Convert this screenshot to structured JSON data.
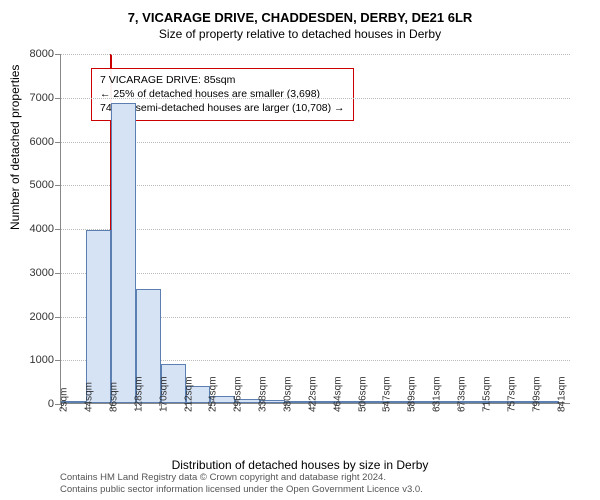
{
  "title": "7, VICARAGE DRIVE, CHADDESDEN, DERBY, DE21 6LR",
  "subtitle": "Size of property relative to detached houses in Derby",
  "ylabel": "Number of detached properties",
  "xlabel": "Distribution of detached houses by size in Derby",
  "attribution_line1": "Contains HM Land Registry data © Crown copyright and database right 2024.",
  "attribution_line2": "Contains public sector information licensed under the Open Government Licence v3.0.",
  "annotation": {
    "line1": "7 VICARAGE DRIVE: 85sqm",
    "line2": "← 25% of detached houses are smaller (3,698)",
    "line3": "74% of semi-detached houses are larger (10,708) →"
  },
  "chart": {
    "type": "histogram",
    "ylim": [
      0,
      8000
    ],
    "ytick_step": 1000,
    "yticks": [
      0,
      1000,
      2000,
      3000,
      4000,
      5000,
      6000,
      7000,
      8000
    ],
    "xtick_positions": [
      2,
      44,
      86,
      128,
      170,
      212,
      254,
      296,
      338,
      380,
      422,
      464,
      506,
      547,
      589,
      631,
      673,
      715,
      757,
      799,
      841
    ],
    "xtick_unit": "sqm",
    "bin_width": 42,
    "bin_starts": [
      2,
      44,
      86,
      128,
      170,
      212,
      254,
      296,
      338,
      380,
      422,
      464,
      506,
      547,
      589,
      631,
      673,
      715,
      757,
      799
    ],
    "values": [
      30,
      3950,
      6850,
      2600,
      900,
      400,
      160,
      100,
      60,
      50,
      30,
      20,
      15,
      10,
      8,
      6,
      5,
      4,
      3,
      2
    ],
    "bar_fill": "#d6e3f5",
    "bar_stroke": "#5b7fb0",
    "grid_color": "#bbbbbb",
    "axis_color": "#888888",
    "background": "#ffffff",
    "refline_x": 85,
    "refline_color": "#cc0000",
    "annotation_box_color": "#cc0000",
    "title_fontsize": 13,
    "subtitle_fontsize": 12,
    "label_fontsize": 12,
    "tick_fontsize": 11,
    "xtick_fontsize": 10,
    "plot_x_range": [
      2,
      862
    ]
  }
}
